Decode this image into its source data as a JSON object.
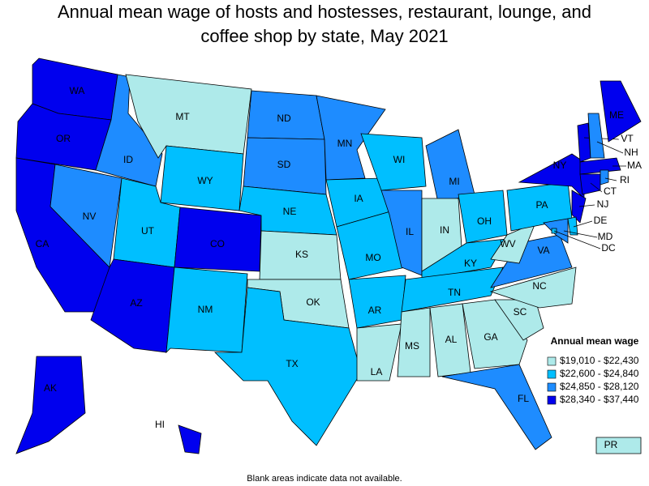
{
  "title": "Annual mean wage of hosts and hostesses, restaurant, lounge, and coffee shop by state, May 2021",
  "legend": {
    "title": "Annual mean wage",
    "items": [
      {
        "label": "$19,010 - $22,430",
        "color": "#aeeaea"
      },
      {
        "label": "$22,600 - $24,840",
        "color": "#00bfff"
      },
      {
        "label": "$24,850 - $28,120",
        "color": "#1e8cff"
      },
      {
        "label": "$28,340 - $37,440",
        "color": "#0000ee"
      }
    ]
  },
  "states": [
    {
      "label": "WA",
      "color": "#0000ee"
    },
    {
      "label": "OR",
      "color": "#0000ee"
    },
    {
      "label": "CA",
      "color": "#0000ee"
    },
    {
      "label": "NV",
      "color": "#1e8cff"
    },
    {
      "label": "ID",
      "color": "#1e8cff"
    },
    {
      "label": "MT",
      "color": "#aeeaea"
    },
    {
      "label": "WY",
      "color": "#00bfff"
    },
    {
      "label": "UT",
      "color": "#00bfff"
    },
    {
      "label": "CO",
      "color": "#0000ee"
    },
    {
      "label": "AZ",
      "color": "#0000ee"
    },
    {
      "label": "NM",
      "color": "#00bfff"
    },
    {
      "label": "ND",
      "color": "#1e8cff"
    },
    {
      "label": "SD",
      "color": "#1e8cff"
    },
    {
      "label": "NE",
      "color": "#00bfff"
    },
    {
      "label": "KS",
      "color": "#aeeaea"
    },
    {
      "label": "OK",
      "color": "#aeeaea"
    },
    {
      "label": "TX",
      "color": "#00bfff"
    },
    {
      "label": "MN",
      "color": "#1e8cff"
    },
    {
      "label": "IA",
      "color": "#00bfff"
    },
    {
      "label": "MO",
      "color": "#00bfff"
    },
    {
      "label": "AR",
      "color": "#00bfff"
    },
    {
      "label": "LA",
      "color": "#aeeaea"
    },
    {
      "label": "WI",
      "color": "#00bfff"
    },
    {
      "label": "IL",
      "color": "#1e8cff"
    },
    {
      "label": "MI",
      "color": "#1e8cff"
    },
    {
      "label": "IN",
      "color": "#aeeaea"
    },
    {
      "label": "OH",
      "color": "#00bfff"
    },
    {
      "label": "KY",
      "color": "#00bfff"
    },
    {
      "label": "TN",
      "color": "#00bfff"
    },
    {
      "label": "MS",
      "color": "#aeeaea"
    },
    {
      "label": "AL",
      "color": "#aeeaea"
    },
    {
      "label": "GA",
      "color": "#aeeaea"
    },
    {
      "label": "FL",
      "color": "#1e8cff"
    },
    {
      "label": "SC",
      "color": "#aeeaea"
    },
    {
      "label": "NC",
      "color": "#aeeaea"
    },
    {
      "label": "VA",
      "color": "#1e8cff"
    },
    {
      "label": "WV",
      "color": "#aeeaea"
    },
    {
      "label": "PA",
      "color": "#00bfff"
    },
    {
      "label": "NY",
      "color": "#0000ee"
    },
    {
      "label": "VT",
      "color": "#0000ee"
    },
    {
      "label": "NH",
      "color": "#1e8cff"
    },
    {
      "label": "ME",
      "color": "#0000ee"
    },
    {
      "label": "MA",
      "color": "#0000ee"
    },
    {
      "label": "CT",
      "color": "#0000ee"
    },
    {
      "label": "RI",
      "color": "#1e8cff"
    },
    {
      "label": "NJ",
      "color": "#0000ee"
    },
    {
      "label": "DE",
      "color": "#00bfff"
    },
    {
      "label": "MD",
      "color": "#1e8cff"
    },
    {
      "label": "DC",
      "color": "#00bfff"
    },
    {
      "label": "AK",
      "color": "#0000ee"
    },
    {
      "label": "HI",
      "color": "#0000ee"
    },
    {
      "label": "PR",
      "color": "#aeeaea"
    }
  ],
  "footnote": "Blank areas indicate data not available."
}
